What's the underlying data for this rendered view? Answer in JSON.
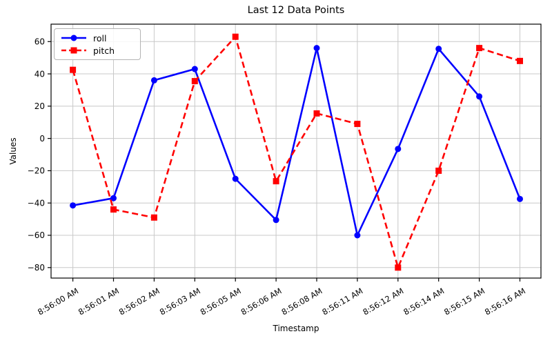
{
  "chart_data": {
    "type": "line",
    "title": "Last 12 Data Points",
    "xlabel": "Timestamp",
    "ylabel": "Values",
    "categories": [
      "8:56:00 AM",
      "8:56:01 AM",
      "8:56:02 AM",
      "8:56:03 AM",
      "8:56:05 AM",
      "8:56:06 AM",
      "8:56:08 AM",
      "8:56:11 AM",
      "8:56:12 AM",
      "8:56:14 AM",
      "8:56:15 AM",
      "8:56:16 AM"
    ],
    "series": [
      {
        "name": "roll",
        "color": "#0000ff",
        "linestyle": "solid",
        "marker": "circle",
        "values": [
          -41.5,
          -37,
          36,
          43,
          -25,
          -50.5,
          56,
          -60,
          -6.5,
          55.5,
          26,
          -37.5
        ]
      },
      {
        "name": "pitch",
        "color": "#ff0000",
        "linestyle": "dashed",
        "marker": "square",
        "values": [
          42.5,
          -44,
          -49,
          35.5,
          63,
          -26.5,
          15.5,
          9,
          -80,
          -20,
          56,
          48
        ]
      }
    ],
    "yticks": [
      60,
      40,
      20,
      0,
      -20,
      -40,
      -60,
      -80
    ],
    "ylim": [
      -86.5,
      70.8
    ],
    "grid": true,
    "grid_color": "#c8c8c8",
    "spine_color": "#000000",
    "background": "#ffffff",
    "legend_position": "upper left",
    "x_tick_rotation": 30
  }
}
